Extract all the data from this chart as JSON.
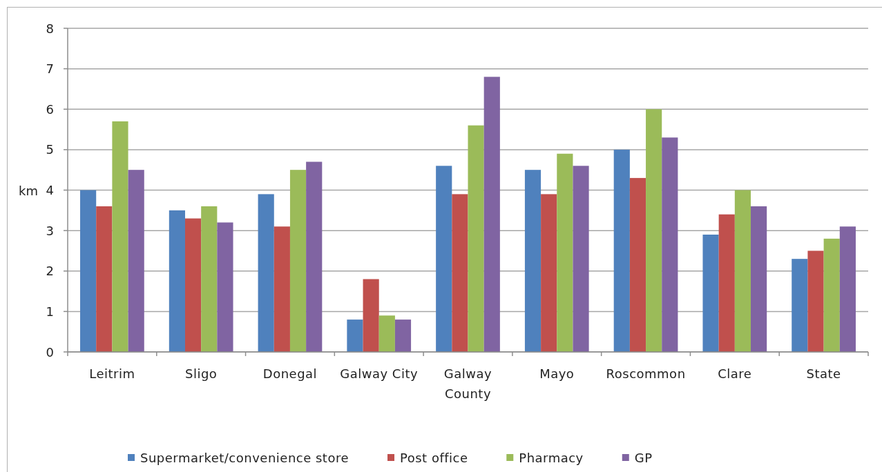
{
  "chart_data": {
    "type": "bar",
    "ylabel": "km",
    "categories": [
      "Leitrim",
      "Sligo",
      "Donegal",
      "Galway City",
      "Galway County",
      "Mayo",
      "Roscommon",
      "Clare",
      "State"
    ],
    "series": [
      {
        "name": "Supermarket/convenience store",
        "color": "#4f81bd",
        "values": [
          4.0,
          3.5,
          3.9,
          0.8,
          4.6,
          4.5,
          5.0,
          2.9,
          2.3
        ]
      },
      {
        "name": "Post office",
        "color": "#c0504d",
        "values": [
          3.6,
          3.3,
          3.1,
          1.8,
          3.9,
          3.9,
          4.3,
          3.4,
          2.5
        ]
      },
      {
        "name": "Pharmacy",
        "color": "#9bbb59",
        "values": [
          5.7,
          3.6,
          4.5,
          0.9,
          5.6,
          4.9,
          6.0,
          4.0,
          2.8
        ]
      },
      {
        "name": "GP",
        "color": "#8064a2",
        "values": [
          4.5,
          3.2,
          4.7,
          0.8,
          6.8,
          4.6,
          5.3,
          3.6,
          3.1
        ]
      }
    ],
    "ylim": [
      0,
      8
    ],
    "yticks": [
      0,
      1,
      2,
      3,
      4,
      5,
      6,
      7,
      8
    ],
    "grid": "y",
    "legend": "bottom"
  }
}
